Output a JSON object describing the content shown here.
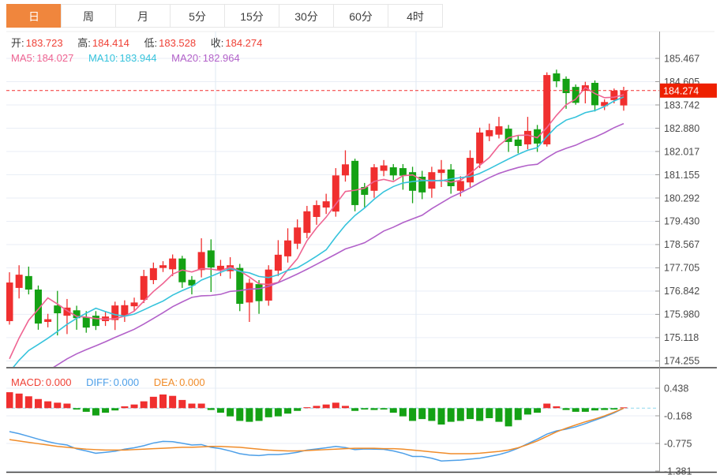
{
  "tabs": {
    "items": [
      {
        "key": "day",
        "label": "日",
        "active": true
      },
      {
        "key": "week",
        "label": "周",
        "active": false
      },
      {
        "key": "month",
        "label": "月",
        "active": false
      },
      {
        "key": "5min",
        "label": "5分",
        "active": false
      },
      {
        "key": "15min",
        "label": "15分",
        "active": false
      },
      {
        "key": "30min",
        "label": "30分",
        "active": false
      },
      {
        "key": "60min",
        "label": "60分",
        "active": false
      },
      {
        "key": "4hour",
        "label": "4时",
        "active": false
      }
    ]
  },
  "info": {
    "ohlc": [
      {
        "label": "开:",
        "value": "183.723"
      },
      {
        "label": "高:",
        "value": "184.414"
      },
      {
        "label": "低:",
        "value": "183.528"
      },
      {
        "label": "收:",
        "value": "184.274"
      }
    ],
    "ma": [
      {
        "label": "MA5:",
        "value": "184.027"
      },
      {
        "label": "MA10:",
        "value": "183.944"
      },
      {
        "label": "MA20:",
        "value": "182.964"
      }
    ]
  },
  "macd_info": [
    {
      "label": "MACD:",
      "value": "0.000"
    },
    {
      "label": "DIFF:",
      "value": "0.000"
    },
    {
      "label": "DEA:",
      "value": "0.000"
    }
  ],
  "colors": {
    "up": "#f02f2f",
    "down": "#14a114",
    "ma5": "#ef6492",
    "ma10": "#36c3dc",
    "ma20": "#b261c9",
    "diff": "#4d9fe8",
    "dea": "#f08c2a",
    "accent_tab": "#f0863d",
    "price_line": "#f23030",
    "badge_bg": "#ee2000",
    "value_red": "#ef4136",
    "zero_line": "#8fd8ee"
  },
  "chart_data": {
    "type": "candlestick",
    "title": "",
    "legend_position": "none",
    "grid": true,
    "y_axis_labels": [
      "185.467",
      "184.605",
      "183.742",
      "182.880",
      "182.017",
      "181.155",
      "180.292",
      "179.430",
      "178.567",
      "177.705",
      "176.842",
      "175.980",
      "175.118",
      "174.255"
    ],
    "last_price": "184.274",
    "ma_periods": [
      5,
      10,
      20
    ],
    "prehistory_closes": [
      170.0,
      170.3,
      170.6,
      170.9,
      171.2,
      171.5,
      171.8,
      172.1,
      172.4,
      172.7,
      172.9,
      173.1,
      173.3,
      173.4,
      173.5,
      173.5,
      173.6,
      173.6,
      173.6,
      173.7
    ],
    "candles": {
      "open": [
        175.73,
        176.96,
        177.4,
        176.9,
        175.7,
        176.31,
        175.93,
        176.13,
        175.87,
        175.93,
        175.73,
        175.77,
        175.93,
        176.28,
        176.52,
        177.25,
        177.7,
        177.65,
        178.05,
        177.26,
        177.62,
        178.35,
        177.62,
        177.58,
        177.7,
        176.42,
        177.1,
        176.49,
        177.6,
        178.13,
        178.6,
        179.0,
        179.59,
        179.94,
        179.79,
        181.13,
        181.67,
        180.7,
        180.56,
        181.3,
        181.43,
        181.4,
        181.25,
        181.08,
        180.64,
        181.22,
        181.35,
        180.56,
        180.87,
        181.57,
        182.58,
        182.64,
        182.86,
        182.46,
        182.28,
        182.84,
        182.28,
        184.91,
        184.71,
        184.41,
        184.27,
        184.56,
        183.7,
        183.92,
        183.723
      ],
      "high": [
        177.54,
        177.8,
        177.75,
        177.05,
        176.0,
        176.85,
        176.55,
        176.3,
        176.1,
        176.1,
        176.1,
        176.45,
        176.5,
        176.6,
        177.63,
        177.9,
        177.95,
        178.2,
        178.15,
        177.4,
        178.8,
        178.76,
        178.0,
        178.1,
        177.85,
        177.3,
        177.25,
        177.8,
        178.73,
        179.17,
        179.5,
        180.0,
        180.2,
        180.45,
        181.4,
        182.06,
        181.75,
        180.85,
        181.55,
        181.7,
        181.55,
        181.55,
        181.45,
        181.3,
        181.45,
        181.7,
        181.55,
        181.1,
        182.06,
        182.9,
        183.05,
        183.3,
        183.0,
        182.6,
        183.3,
        183.0,
        184.95,
        185.05,
        184.8,
        184.5,
        184.6,
        184.65,
        183.95,
        184.35,
        184.414
      ],
      "low": [
        175.6,
        176.57,
        176.72,
        175.41,
        175.5,
        175.2,
        175.25,
        175.41,
        175.3,
        175.4,
        175.55,
        175.4,
        175.7,
        176.1,
        176.4,
        177.1,
        177.55,
        177.4,
        176.96,
        176.72,
        177.35,
        176.81,
        177.4,
        177.3,
        176.1,
        175.7,
        176.0,
        176.3,
        177.4,
        177.9,
        178.4,
        178.8,
        179.3,
        179.7,
        179.6,
        180.9,
        179.8,
        179.95,
        180.3,
        181.1,
        180.95,
        180.6,
        180.1,
        180.25,
        180.3,
        180.7,
        180.45,
        180.35,
        180.7,
        181.4,
        182.4,
        182.5,
        182.0,
        181.95,
        182.1,
        182.0,
        182.2,
        184.4,
        183.6,
        183.75,
        183.8,
        183.5,
        183.55,
        183.8,
        183.528
      ],
      "close": [
        177.16,
        177.45,
        176.9,
        175.64,
        175.8,
        176.02,
        176.23,
        175.84,
        175.49,
        175.55,
        175.9,
        176.31,
        176.32,
        176.42,
        177.4,
        177.69,
        177.8,
        178.05,
        177.17,
        177.05,
        178.29,
        177.72,
        177.78,
        177.8,
        176.37,
        177.15,
        176.47,
        177.64,
        178.19,
        178.72,
        179.2,
        179.8,
        180.03,
        180.17,
        181.13,
        181.54,
        180.03,
        180.41,
        181.43,
        181.5,
        181.13,
        181.12,
        180.56,
        180.5,
        181.25,
        181.35,
        180.73,
        180.92,
        181.78,
        182.72,
        182.81,
        182.95,
        182.37,
        182.22,
        182.78,
        182.31,
        184.85,
        184.62,
        184.18,
        183.82,
        184.47,
        183.73,
        183.85,
        184.27,
        184.274
      ]
    },
    "macd": {
      "axis_labels": [
        "0.438",
        "-0.168",
        "-0.775",
        "-1.381"
      ],
      "hist": [
        0.35,
        0.32,
        0.26,
        0.2,
        0.15,
        0.12,
        0.1,
        -0.03,
        -0.08,
        -0.16,
        -0.1,
        -0.05,
        0.04,
        0.08,
        0.15,
        0.25,
        0.3,
        0.27,
        0.18,
        0.1,
        0.1,
        -0.04,
        -0.1,
        -0.18,
        -0.28,
        -0.3,
        -0.28,
        -0.2,
        -0.18,
        -0.12,
        -0.06,
        0.02,
        0.05,
        0.08,
        0.12,
        0.05,
        -0.06,
        -0.03,
        -0.04,
        -0.03,
        -0.1,
        -0.18,
        -0.28,
        -0.24,
        -0.28,
        -0.36,
        -0.3,
        -0.28,
        -0.24,
        -0.28,
        -0.22,
        -0.3,
        -0.4,
        -0.26,
        -0.14,
        -0.1,
        0.1,
        0.04,
        -0.04,
        -0.08,
        -0.08,
        -0.05,
        -0.04,
        -0.03,
        0.001
      ],
      "diff": [
        -0.515,
        -0.56,
        -0.62,
        -0.68,
        -0.735,
        -0.78,
        -0.81,
        -0.895,
        -0.94,
        -0.99,
        -0.97,
        -0.945,
        -0.9,
        -0.87,
        -0.825,
        -0.765,
        -0.73,
        -0.735,
        -0.77,
        -0.81,
        -0.8,
        -0.86,
        -0.89,
        -0.94,
        -1.0,
        -1.03,
        -1.04,
        -1.02,
        -1.02,
        -1.0,
        -0.97,
        -0.92,
        -0.895,
        -0.87,
        -0.84,
        -0.865,
        -0.91,
        -0.895,
        -0.9,
        -0.905,
        -0.94,
        -0.99,
        -1.06,
        -1.06,
        -1.1,
        -1.16,
        -1.15,
        -1.14,
        -1.12,
        -1.1,
        -1.06,
        -1.02,
        -0.96,
        -0.88,
        -0.78,
        -0.68,
        -0.57,
        -0.5,
        -0.46,
        -0.41,
        -0.34,
        -0.265,
        -0.19,
        -0.105,
        0.0
      ],
      "dea": [
        -0.69,
        -0.72,
        -0.75,
        -0.78,
        -0.81,
        -0.84,
        -0.86,
        -0.88,
        -0.9,
        -0.91,
        -0.92,
        -0.92,
        -0.92,
        -0.91,
        -0.9,
        -0.89,
        -0.88,
        -0.87,
        -0.86,
        -0.86,
        -0.85,
        -0.84,
        -0.84,
        -0.85,
        -0.86,
        -0.88,
        -0.9,
        -0.92,
        -0.93,
        -0.94,
        -0.94,
        -0.93,
        -0.92,
        -0.91,
        -0.9,
        -0.89,
        -0.88,
        -0.88,
        -0.88,
        -0.89,
        -0.89,
        -0.9,
        -0.92,
        -0.94,
        -0.96,
        -0.98,
        -1.0,
        -1.0,
        -1.0,
        -0.99,
        -0.97,
        -0.95,
        -0.92,
        -0.87,
        -0.8,
        -0.72,
        -0.62,
        -0.52,
        -0.44,
        -0.37,
        -0.3,
        -0.24,
        -0.17,
        -0.09,
        0.0
      ]
    }
  }
}
